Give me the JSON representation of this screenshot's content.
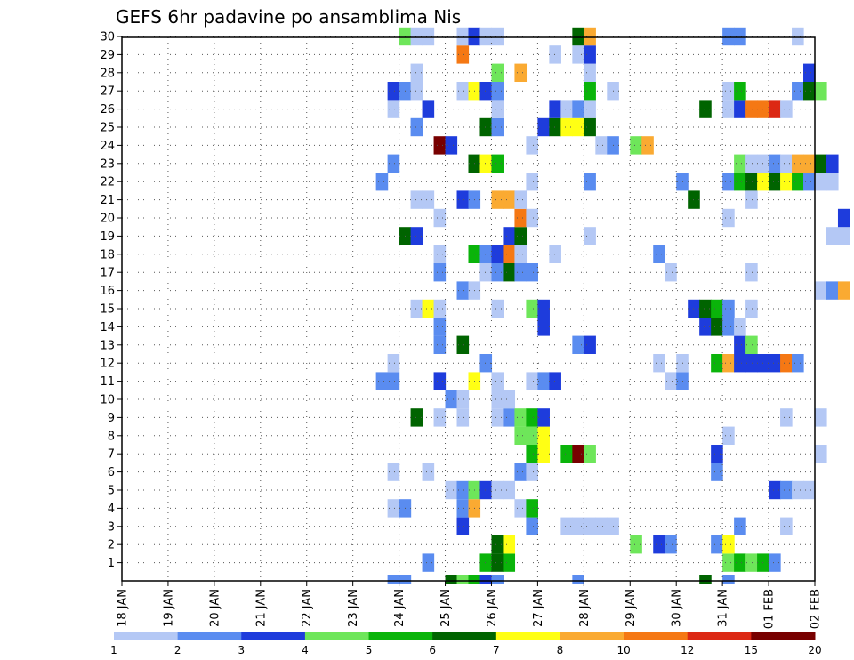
{
  "chart_data": {
    "type": "heatmap",
    "title": "GEFS 6hr padavine po ansamblima Nis",
    "xlabel": "",
    "ylabel": "",
    "x_ticks": [
      "18 JAN",
      "19 JAN",
      "20 JAN",
      "21 JAN",
      "22 JAN",
      "23 JAN",
      "24 JAN",
      "25 JAN",
      "26 JAN",
      "27 JAN",
      "28 JAN",
      "29 JAN",
      "30 JAN",
      "31 JAN",
      "01 FEB",
      "02 FEB"
    ],
    "y_ticks": [
      "1",
      "2",
      "3",
      "4",
      "5",
      "6",
      "7",
      "8",
      "9",
      "10",
      "11",
      "12",
      "13",
      "14",
      "15",
      "16",
      "17",
      "18",
      "19",
      "20",
      "21",
      "22",
      "23",
      "24",
      "25",
      "26",
      "27",
      "28",
      "29",
      "30"
    ],
    "grid": true,
    "x_step_hours": 6,
    "levels": [
      "1",
      "2",
      "3",
      "4",
      "5",
      "6",
      "7",
      "8",
      "10",
      "12",
      "15",
      "20"
    ],
    "colors": [
      "#b4c8f5",
      "#5a8cf0",
      "#1e3cdc",
      "#6ee65a",
      "#0ab40a",
      "#006400",
      "#ffff14",
      "#faaa32",
      "#f57814",
      "#dc2814",
      "#780000"
    ],
    "cells": [
      [
        0,
        23.75,
        2
      ],
      [
        0,
        24.0,
        2
      ],
      [
        0,
        25.0,
        6
      ],
      [
        0,
        25.25,
        4
      ],
      [
        0,
        25.5,
        5
      ],
      [
        0,
        25.75,
        3
      ],
      [
        0,
        26.0,
        2
      ],
      [
        0,
        27.75,
        2
      ],
      [
        0,
        30.5,
        6
      ],
      [
        0,
        31.0,
        2
      ],
      [
        1,
        24.5,
        2
      ],
      [
        1,
        25.75,
        5
      ],
      [
        1,
        26.0,
        6
      ],
      [
        1,
        26.25,
        5
      ],
      [
        1,
        31.0,
        4
      ],
      [
        1,
        31.25,
        5
      ],
      [
        1,
        31.5,
        4
      ],
      [
        1,
        31.75,
        5
      ],
      [
        1,
        32.0,
        2
      ],
      [
        2,
        26.0,
        6
      ],
      [
        2,
        26.25,
        7
      ],
      [
        2,
        29.0,
        4
      ],
      [
        2,
        29.5,
        3
      ],
      [
        2,
        29.75,
        2
      ],
      [
        2,
        30.75,
        2
      ],
      [
        2,
        31.0,
        7
      ],
      [
        3,
        25.25,
        3
      ],
      [
        3,
        26.75,
        2
      ],
      [
        3,
        27.5,
        1
      ],
      [
        3,
        27.75,
        1
      ],
      [
        3,
        28.0,
        1
      ],
      [
        3,
        28.25,
        1
      ],
      [
        3,
        28.5,
        1
      ],
      [
        3,
        31.25,
        2
      ],
      [
        3,
        32.25,
        1
      ],
      [
        4,
        23.75,
        1
      ],
      [
        4,
        24.0,
        2
      ],
      [
        4,
        25.25,
        2
      ],
      [
        4,
        25.5,
        8
      ],
      [
        4,
        26.5,
        1
      ],
      [
        4,
        26.75,
        5
      ],
      [
        5,
        25.0,
        1
      ],
      [
        5,
        25.25,
        2
      ],
      [
        5,
        25.5,
        4
      ],
      [
        5,
        25.75,
        3
      ],
      [
        5,
        26.0,
        1
      ],
      [
        5,
        26.25,
        1
      ],
      [
        5,
        32.0,
        3
      ],
      [
        5,
        32.25,
        2
      ],
      [
        5,
        32.5,
        1
      ],
      [
        5,
        32.75,
        1
      ],
      [
        6,
        23.75,
        1
      ],
      [
        6,
        24.5,
        1
      ],
      [
        6,
        26.5,
        2
      ],
      [
        6,
        26.75,
        1
      ],
      [
        6,
        30.75,
        2
      ],
      [
        7,
        26.75,
        5
      ],
      [
        7,
        27.0,
        7
      ],
      [
        7,
        27.5,
        5
      ],
      [
        7,
        27.75,
        11
      ],
      [
        7,
        28.0,
        4
      ],
      [
        7,
        30.75,
        3
      ],
      [
        7,
        33.0,
        1
      ],
      [
        8,
        26.5,
        4
      ],
      [
        8,
        26.75,
        4
      ],
      [
        8,
        27.0,
        7
      ],
      [
        8,
        31.0,
        1
      ],
      [
        9,
        24.25,
        6
      ],
      [
        9,
        24.75,
        1
      ],
      [
        9,
        25.25,
        1
      ],
      [
        9,
        26.0,
        1
      ],
      [
        9,
        26.25,
        2
      ],
      [
        9,
        26.5,
        4
      ],
      [
        9,
        26.75,
        5
      ],
      [
        9,
        27.0,
        3
      ],
      [
        9,
        32.25,
        1
      ],
      [
        9,
        33.0,
        1
      ],
      [
        10,
        25.0,
        2
      ],
      [
        10,
        25.25,
        1
      ],
      [
        10,
        26.0,
        1
      ],
      [
        10,
        26.25,
        1
      ],
      [
        11,
        23.5,
        2
      ],
      [
        11,
        23.75,
        2
      ],
      [
        11,
        24.75,
        3
      ],
      [
        11,
        25.5,
        7
      ],
      [
        11,
        26.0,
        1
      ],
      [
        11,
        26.75,
        1
      ],
      [
        11,
        27.0,
        2
      ],
      [
        11,
        27.25,
        3
      ],
      [
        11,
        29.75,
        1
      ],
      [
        11,
        30.0,
        2
      ],
      [
        12,
        23.75,
        1
      ],
      [
        12,
        25.75,
        2
      ],
      [
        12,
        29.5,
        1
      ],
      [
        12,
        30.0,
        1
      ],
      [
        12,
        30.75,
        5
      ],
      [
        12,
        31.0,
        8
      ],
      [
        12,
        31.25,
        3
      ],
      [
        12,
        31.5,
        3
      ],
      [
        12,
        31.75,
        3
      ],
      [
        12,
        32.0,
        3
      ],
      [
        12,
        32.25,
        9
      ],
      [
        12,
        32.5,
        2
      ],
      [
        13,
        24.75,
        2
      ],
      [
        13,
        25.25,
        6
      ],
      [
        13,
        27.75,
        2
      ],
      [
        13,
        28.0,
        3
      ],
      [
        13,
        31.25,
        3
      ],
      [
        13,
        31.5,
        4
      ],
      [
        14,
        24.75,
        2
      ],
      [
        14,
        27.0,
        3
      ],
      [
        14,
        30.5,
        3
      ],
      [
        14,
        30.75,
        6
      ],
      [
        14,
        31.0,
        2
      ],
      [
        14,
        31.25,
        1
      ],
      [
        15,
        24.25,
        1
      ],
      [
        15,
        24.5,
        7
      ],
      [
        15,
        24.75,
        1
      ],
      [
        15,
        26.0,
        1
      ],
      [
        15,
        26.75,
        4
      ],
      [
        15,
        27.0,
        3
      ],
      [
        15,
        30.25,
        3
      ],
      [
        15,
        30.5,
        6
      ],
      [
        15,
        30.75,
        5
      ],
      [
        15,
        31.0,
        2
      ],
      [
        15,
        31.5,
        1
      ],
      [
        16,
        25.25,
        2
      ],
      [
        16,
        25.5,
        1
      ],
      [
        16,
        33.0,
        1
      ],
      [
        16,
        33.25,
        2
      ],
      [
        16,
        33.5,
        8
      ],
      [
        17,
        24.75,
        2
      ],
      [
        17,
        25.75,
        1
      ],
      [
        17,
        26.0,
        2
      ],
      [
        17,
        26.25,
        6
      ],
      [
        17,
        26.5,
        2
      ],
      [
        17,
        26.75,
        2
      ],
      [
        17,
        29.75,
        1
      ],
      [
        17,
        31.5,
        1
      ],
      [
        18,
        24.75,
        1
      ],
      [
        18,
        25.5,
        5
      ],
      [
        18,
        25.75,
        2
      ],
      [
        18,
        26.0,
        3
      ],
      [
        18,
        26.25,
        9
      ],
      [
        18,
        26.5,
        1
      ],
      [
        18,
        27.25,
        1
      ],
      [
        18,
        29.5,
        2
      ],
      [
        19,
        24.0,
        6
      ],
      [
        19,
        24.25,
        3
      ],
      [
        19,
        26.25,
        3
      ],
      [
        19,
        26.5,
        6
      ],
      [
        19,
        28.0,
        1
      ],
      [
        19,
        33.25,
        1
      ],
      [
        19,
        33.5,
        1
      ],
      [
        20,
        24.75,
        1
      ],
      [
        20,
        26.5,
        9
      ],
      [
        20,
        26.75,
        1
      ],
      [
        20,
        31.0,
        1
      ],
      [
        20,
        33.5,
        3
      ],
      [
        21,
        24.25,
        1
      ],
      [
        21,
        24.5,
        1
      ],
      [
        21,
        25.25,
        3
      ],
      [
        21,
        25.5,
        2
      ],
      [
        21,
        26.0,
        8
      ],
      [
        21,
        26.25,
        8
      ],
      [
        21,
        26.5,
        1
      ],
      [
        21,
        30.25,
        6
      ],
      [
        21,
        31.5,
        1
      ],
      [
        22,
        23.5,
        2
      ],
      [
        22,
        26.75,
        1
      ],
      [
        22,
        28.0,
        2
      ],
      [
        22,
        30.0,
        2
      ],
      [
        22,
        31.0,
        2
      ],
      [
        22,
        31.25,
        5
      ],
      [
        22,
        31.5,
        6
      ],
      [
        22,
        31.75,
        7
      ],
      [
        22,
        32.0,
        6
      ],
      [
        22,
        32.25,
        7
      ],
      [
        22,
        32.5,
        5
      ],
      [
        22,
        32.75,
        2
      ],
      [
        22,
        33.0,
        1
      ],
      [
        22,
        33.25,
        1
      ],
      [
        23,
        23.75,
        2
      ],
      [
        23,
        25.5,
        6
      ],
      [
        23,
        25.75,
        7
      ],
      [
        23,
        26.0,
        5
      ],
      [
        23,
        31.25,
        4
      ],
      [
        23,
        31.5,
        1
      ],
      [
        23,
        31.75,
        1
      ],
      [
        23,
        32.0,
        2
      ],
      [
        23,
        32.25,
        1
      ],
      [
        23,
        32.5,
        8
      ],
      [
        23,
        32.75,
        8
      ],
      [
        23,
        33.0,
        6
      ],
      [
        23,
        33.25,
        3
      ],
      [
        24,
        24.75,
        11
      ],
      [
        24,
        25.0,
        3
      ],
      [
        24,
        26.75,
        1
      ],
      [
        24,
        28.25,
        1
      ],
      [
        24,
        28.5,
        2
      ],
      [
        24,
        29.0,
        4
      ],
      [
        24,
        29.25,
        8
      ],
      [
        25,
        24.25,
        2
      ],
      [
        25,
        25.75,
        6
      ],
      [
        25,
        26.0,
        2
      ],
      [
        25,
        27.0,
        3
      ],
      [
        25,
        27.25,
        6
      ],
      [
        25,
        27.5,
        7
      ],
      [
        25,
        27.75,
        7
      ],
      [
        25,
        28.0,
        6
      ],
      [
        25,
        34.0,
        2
      ],
      [
        26,
        23.75,
        1
      ],
      [
        26,
        24.5,
        3
      ],
      [
        26,
        26.0,
        1
      ],
      [
        26,
        27.25,
        3
      ],
      [
        26,
        27.5,
        1
      ],
      [
        26,
        27.75,
        2
      ],
      [
        26,
        28.0,
        1
      ],
      [
        26,
        30.5,
        6
      ],
      [
        26,
        31.0,
        1
      ],
      [
        26,
        31.25,
        3
      ],
      [
        26,
        31.5,
        9
      ],
      [
        26,
        31.75,
        9
      ],
      [
        26,
        32.0,
        10
      ],
      [
        26,
        32.25,
        1
      ],
      [
        27,
        23.75,
        3
      ],
      [
        27,
        24.0,
        2
      ],
      [
        27,
        24.25,
        1
      ],
      [
        27,
        25.25,
        1
      ],
      [
        27,
        25.5,
        7
      ],
      [
        27,
        25.75,
        3
      ],
      [
        27,
        26.0,
        2
      ],
      [
        27,
        28.0,
        5
      ],
      [
        27,
        28.5,
        1
      ],
      [
        27,
        31.0,
        1
      ],
      [
        27,
        31.25,
        5
      ],
      [
        27,
        32.5,
        2
      ],
      [
        27,
        32.75,
        6
      ],
      [
        27,
        33.0,
        4
      ],
      [
        28,
        24.25,
        1
      ],
      [
        28,
        26.0,
        4
      ],
      [
        28,
        26.5,
        8
      ],
      [
        28,
        28.0,
        1
      ],
      [
        28,
        32.75,
        3
      ],
      [
        29,
        25.25,
        9
      ],
      [
        29,
        27.25,
        1
      ],
      [
        29,
        27.75,
        1
      ],
      [
        29,
        28.0,
        3
      ],
      [
        30,
        24.0,
        4
      ],
      [
        30,
        24.25,
        1
      ],
      [
        30,
        24.5,
        1
      ],
      [
        30,
        25.25,
        1
      ],
      [
        30,
        25.5,
        3
      ],
      [
        30,
        25.75,
        1
      ],
      [
        30,
        26.0,
        1
      ],
      [
        30,
        27.75,
        6
      ],
      [
        30,
        28.0,
        8
      ],
      [
        30,
        31.0,
        2
      ],
      [
        30,
        31.25,
        2
      ],
      [
        30,
        32.5,
        1
      ]
    ]
  }
}
